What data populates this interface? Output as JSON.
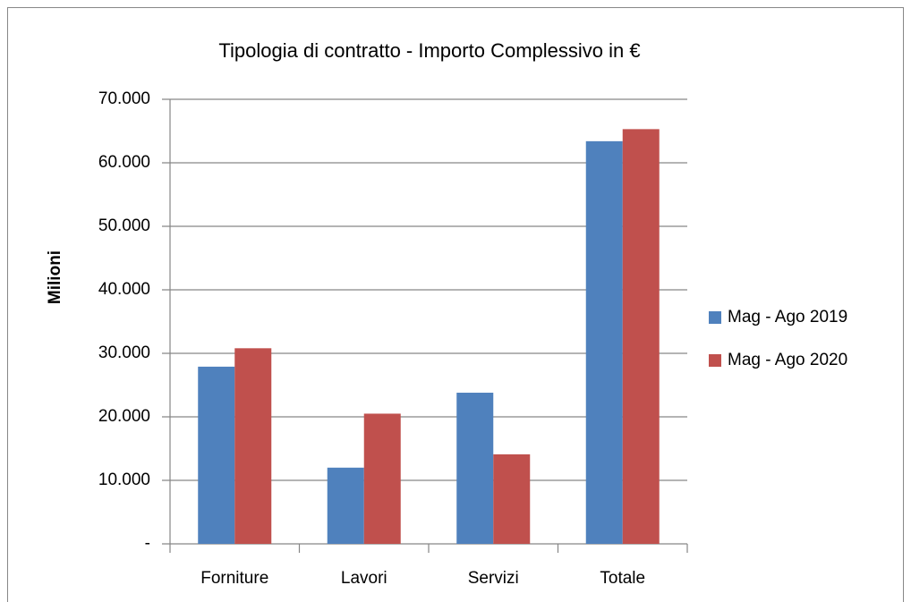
{
  "chart_data": {
    "type": "bar",
    "title": "Tipologia di contratto - Importo Complessivo in €",
    "y_label": "Milioni",
    "categories": [
      "Forniture",
      "Lavori",
      "Servizi",
      "Totale"
    ],
    "series": [
      {
        "name": "Mag - Ago 2019",
        "color": "#4f81bd",
        "values": [
          27900,
          12000,
          23800,
          63400
        ]
      },
      {
        "name": "Mag - Ago 2020",
        "color": "#c0504d",
        "values": [
          30800,
          20500,
          14100,
          65300
        ]
      }
    ],
    "ylim": [
      0,
      70000
    ],
    "yticks": [
      {
        "value": 0,
        "label": "-"
      },
      {
        "value": 10000,
        "label": "10.000"
      },
      {
        "value": 20000,
        "label": "20.000"
      },
      {
        "value": 30000,
        "label": "30.000"
      },
      {
        "value": 40000,
        "label": "40.000"
      },
      {
        "value": 50000,
        "label": "50.000"
      },
      {
        "value": 60000,
        "label": "60.000"
      },
      {
        "value": 70000,
        "label": "70.000"
      }
    ],
    "grid": true,
    "legend": "right"
  }
}
